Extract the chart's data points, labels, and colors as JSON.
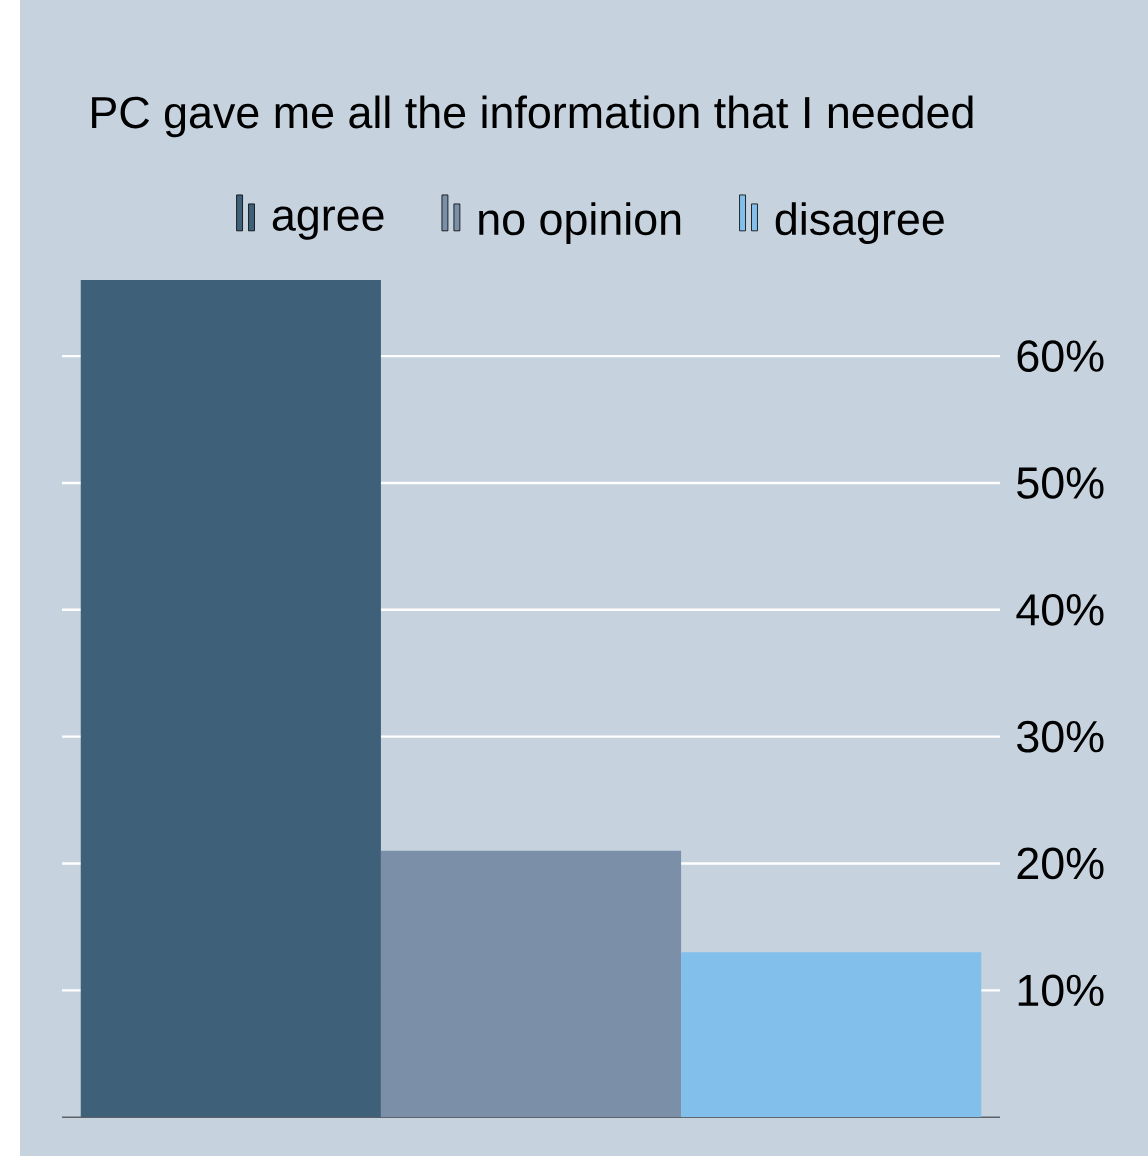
{
  "chart_data": {
    "type": "bar",
    "title": "PC gave me all the information that I needed",
    "categories": [
      null
    ],
    "series": [
      {
        "name": "agree",
        "color": "#3e6079",
        "values": [
          66
        ]
      },
      {
        "name": "no opinion",
        "color": "#7b90a8",
        "values": [
          21
        ]
      },
      {
        "name": "disagree",
        "color": "#82bfea",
        "values": [
          13
        ]
      }
    ],
    "ylim": [
      0,
      66
    ],
    "yticks": [
      {
        "value": 10,
        "label": "10%"
      },
      {
        "value": 20,
        "label": "20%"
      },
      {
        "value": 30,
        "label": "30%"
      },
      {
        "value": 40,
        "label": "40%"
      },
      {
        "value": 50,
        "label": "50%"
      },
      {
        "value": 60,
        "label": "60%"
      }
    ],
    "grid": "y",
    "legend": "top"
  }
}
